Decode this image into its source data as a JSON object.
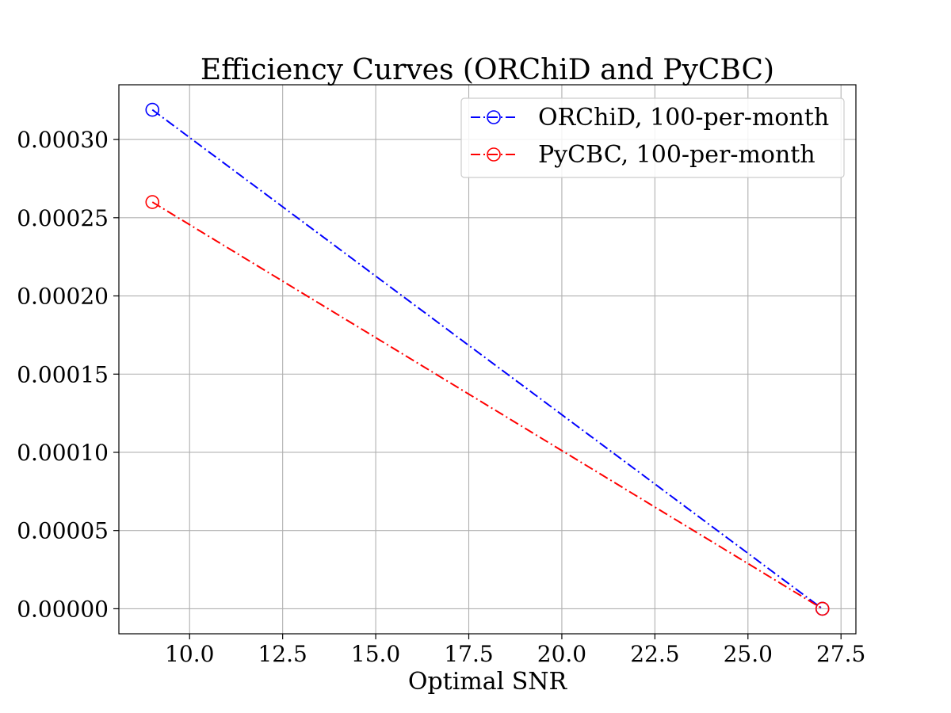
{
  "chart_data": {
    "type": "line",
    "title": "Efficiency Curves (ORChiD and PyCBC)",
    "xlabel": "Optimal SNR",
    "ylabel": "",
    "xlim": [
      8.1,
      27.9
    ],
    "ylim": [
      -1.6e-05,
      0.000335
    ],
    "x_ticks": [
      10.0,
      12.5,
      15.0,
      17.5,
      20.0,
      22.5,
      25.0,
      27.5
    ],
    "x_tick_labels": [
      "10.0",
      "12.5",
      "15.0",
      "17.5",
      "20.0",
      "22.5",
      "25.0",
      "27.5"
    ],
    "y_ticks": [
      0,
      5e-05,
      0.0001,
      0.00015,
      0.0002,
      0.00025,
      0.0003
    ],
    "y_tick_labels": [
      "0.00000",
      "0.00005",
      "0.00010",
      "0.00015",
      "0.00020",
      "0.00025",
      "0.00030"
    ],
    "grid": true,
    "legend_position": "upper right",
    "series": [
      {
        "name": "ORChiD, 100-per-month",
        "color": "#0000ff",
        "linestyle": "dash-dot",
        "marker": "open-circle",
        "x": [
          9.0,
          27.0
        ],
        "y": [
          0.000319,
          0.0
        ]
      },
      {
        "name": "PyCBC, 100-per-month",
        "color": "#ff0000",
        "linestyle": "dash-dot",
        "marker": "open-circle",
        "x": [
          9.0,
          27.0
        ],
        "y": [
          0.00026,
          0.0
        ]
      }
    ]
  }
}
